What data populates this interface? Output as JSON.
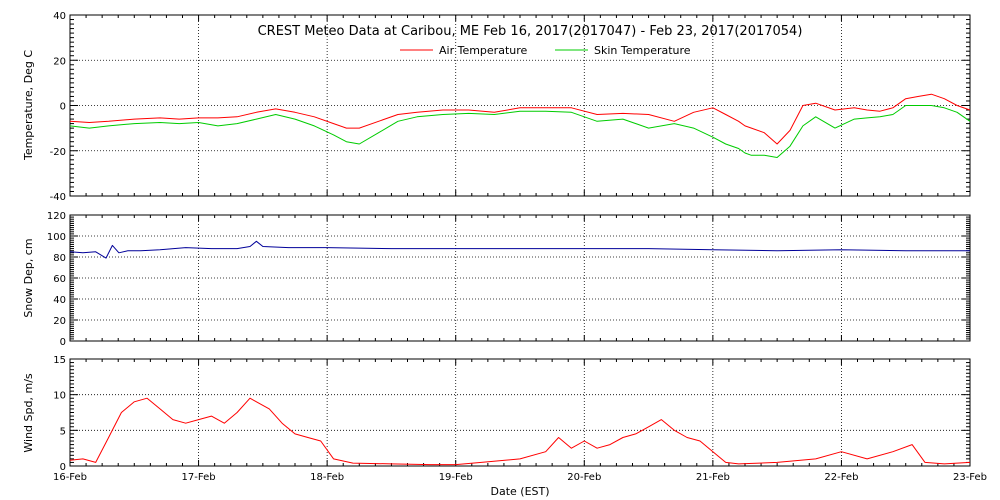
{
  "chart_data": [
    {
      "type": "line",
      "id": "temperature",
      "title": "CREST Meteo Data at Caribou, ME    Feb 16, 2017(2017047) - Feb 23, 2017(2017054)",
      "ylabel": "Temperature, Deg C",
      "ylim": [
        -40,
        40
      ],
      "yticks": [
        -40,
        -20,
        0,
        20,
        40
      ],
      "xlim": [
        0,
        7
      ],
      "grid": true,
      "legend_position": "top-center",
      "series": [
        {
          "name": "Air Temperature",
          "color": "#ff0000",
          "x": [
            0,
            0.15,
            0.3,
            0.5,
            0.7,
            0.85,
            1.0,
            1.15,
            1.3,
            1.45,
            1.6,
            1.75,
            1.9,
            2.05,
            2.15,
            2.25,
            2.4,
            2.55,
            2.7,
            2.9,
            3.1,
            3.3,
            3.5,
            3.7,
            3.9,
            4.1,
            4.3,
            4.5,
            4.7,
            4.85,
            5.0,
            5.1,
            5.2,
            5.25,
            5.3,
            5.4,
            5.5,
            5.6,
            5.7,
            5.8,
            5.95,
            6.1,
            6.2,
            6.3,
            6.4,
            6.5,
            6.6,
            6.7,
            6.8,
            6.9,
            7.0
          ],
          "y": [
            -7,
            -7.5,
            -7,
            -6,
            -5.5,
            -6,
            -5.5,
            -5.5,
            -5,
            -3,
            -1.5,
            -3,
            -5,
            -8,
            -10,
            -10,
            -7,
            -4,
            -3,
            -2,
            -2,
            -3,
            -1,
            -1,
            -1,
            -4,
            -3.5,
            -4,
            -7,
            -3,
            -1,
            -4,
            -7,
            -9,
            -10,
            -12,
            -17,
            -11,
            0,
            1,
            -2,
            -1,
            -2,
            -2.5,
            -1,
            3,
            4,
            5,
            3,
            0,
            -2
          ]
        },
        {
          "name": "Skin Temperature",
          "color": "#00cc00",
          "x": [
            0,
            0.15,
            0.3,
            0.5,
            0.7,
            0.85,
            1.0,
            1.15,
            1.3,
            1.45,
            1.6,
            1.75,
            1.9,
            2.05,
            2.15,
            2.25,
            2.4,
            2.55,
            2.7,
            2.9,
            3.1,
            3.3,
            3.5,
            3.7,
            3.9,
            4.1,
            4.3,
            4.5,
            4.7,
            4.85,
            5.0,
            5.1,
            5.2,
            5.25,
            5.3,
            5.4,
            5.5,
            5.6,
            5.7,
            5.8,
            5.95,
            6.1,
            6.2,
            6.3,
            6.4,
            6.5,
            6.6,
            6.7,
            6.8,
            6.9,
            7.0
          ],
          "y": [
            -9,
            -10,
            -9,
            -8,
            -7.5,
            -8,
            -7.5,
            -9,
            -8,
            -6,
            -4,
            -6,
            -9,
            -13,
            -16,
            -17,
            -12,
            -7,
            -5,
            -4,
            -3.5,
            -4,
            -2.5,
            -2.5,
            -3,
            -7,
            -6,
            -10,
            -8,
            -10,
            -14,
            -17,
            -19,
            -21,
            -22,
            -22,
            -23,
            -18,
            -9,
            -5,
            -10,
            -6,
            -5.5,
            -5,
            -4,
            0,
            0,
            0,
            -1,
            -3,
            -7
          ]
        }
      ]
    },
    {
      "type": "line",
      "id": "snow",
      "ylabel": "Snow Dep, cm",
      "ylim": [
        0,
        120
      ],
      "yticks": [
        0,
        20,
        40,
        60,
        80,
        100,
        120
      ],
      "xlim": [
        0,
        7
      ],
      "grid": true,
      "series": [
        {
          "color": "#000099",
          "x": [
            0,
            0.1,
            0.2,
            0.28,
            0.33,
            0.38,
            0.45,
            0.55,
            0.7,
            0.9,
            1.1,
            1.3,
            1.4,
            1.45,
            1.5,
            1.7,
            2.0,
            2.5,
            3.0,
            3.5,
            4.0,
            4.5,
            5.0,
            5.5,
            6.0,
            6.5,
            7.0
          ],
          "y": [
            85,
            84,
            85,
            79,
            91,
            84,
            86,
            86,
            87,
            89,
            88,
            88,
            90,
            95,
            90,
            89,
            89,
            88,
            88,
            88,
            88,
            88,
            87,
            86,
            87,
            86,
            86
          ]
        }
      ]
    },
    {
      "type": "line",
      "id": "wind",
      "ylabel": "Wind Spd, m/s",
      "xlabel": "Date (EST)",
      "ylim": [
        0,
        15
      ],
      "yticks": [
        0,
        5,
        10,
        15
      ],
      "xlim": [
        0,
        7
      ],
      "xtick_labels": [
        "16-Feb",
        "17-Feb",
        "18-Feb",
        "19-Feb",
        "20-Feb",
        "21-Feb",
        "22-Feb",
        "23-Feb"
      ],
      "grid": true,
      "series": [
        {
          "color": "#ff0000",
          "x": [
            0,
            0.1,
            0.2,
            0.3,
            0.4,
            0.5,
            0.6,
            0.7,
            0.8,
            0.9,
            1.0,
            1.1,
            1.2,
            1.3,
            1.4,
            1.45,
            1.55,
            1.65,
            1.75,
            1.85,
            1.95,
            2.05,
            2.2,
            2.5,
            2.8,
            3.0,
            3.2,
            3.5,
            3.7,
            3.8,
            3.9,
            4.0,
            4.1,
            4.2,
            4.3,
            4.4,
            4.5,
            4.6,
            4.7,
            4.8,
            4.9,
            5.0,
            5.1,
            5.2,
            5.5,
            5.8,
            6.0,
            6.2,
            6.4,
            6.55,
            6.65,
            6.8,
            7.0
          ],
          "y": [
            0.8,
            1,
            0.5,
            4,
            7.5,
            9,
            9.5,
            8,
            6.5,
            6,
            6.5,
            7,
            6,
            7.5,
            9.5,
            9,
            8,
            6,
            4.5,
            4,
            3.5,
            1,
            0.4,
            0.3,
            0.2,
            0.2,
            0.5,
            1,
            2,
            4,
            2.5,
            3.5,
            2.5,
            3,
            4,
            4.5,
            5.5,
            6.5,
            5,
            4,
            3.5,
            2,
            0.5,
            0.3,
            0.5,
            1,
            2,
            1,
            2,
            3,
            0.5,
            0.3,
            0.5
          ]
        }
      ]
    }
  ]
}
